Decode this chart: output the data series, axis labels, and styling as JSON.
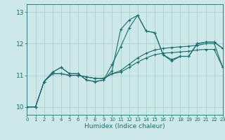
{
  "xlabel": "Humidex (Indice chaleur)",
  "background_color": "#cce8e8",
  "grid_color": "#aacccc",
  "line_color": "#1a6e6e",
  "xlim": [
    0,
    23
  ],
  "ylim": [
    9.75,
    13.25
  ],
  "yticks": [
    10,
    11,
    12,
    13
  ],
  "xticks": [
    0,
    1,
    2,
    3,
    4,
    5,
    6,
    7,
    8,
    9,
    10,
    11,
    12,
    13,
    14,
    15,
    16,
    17,
    18,
    19,
    20,
    21,
    22,
    23
  ],
  "series": [
    {
      "x": [
        0,
        1,
        2,
        3,
        4,
        5,
        6,
        7,
        8,
        9,
        10,
        11,
        12,
        13,
        14,
        15,
        16,
        17,
        18,
        19,
        20,
        21,
        22,
        23
      ],
      "y": [
        10.0,
        10.0,
        10.8,
        11.1,
        11.25,
        11.05,
        11.05,
        10.85,
        10.8,
        10.85,
        11.15,
        12.45,
        12.75,
        12.9,
        12.4,
        12.35,
        11.65,
        11.5,
        11.6,
        11.6,
        12.0,
        12.05,
        12.05,
        11.85
      ]
    },
    {
      "x": [
        0,
        1,
        2,
        3,
        4,
        5,
        6,
        7,
        8,
        9,
        10,
        11,
        12,
        13,
        14,
        15,
        16,
        17,
        18,
        19,
        20,
        21,
        22,
        23
      ],
      "y": [
        10.0,
        10.0,
        10.8,
        11.05,
        11.05,
        11.0,
        11.0,
        10.95,
        10.9,
        10.9,
        11.05,
        11.15,
        11.35,
        11.55,
        11.7,
        11.8,
        11.85,
        11.88,
        11.9,
        11.92,
        11.95,
        12.0,
        12.0,
        11.25
      ]
    },
    {
      "x": [
        0,
        1,
        2,
        3,
        4,
        5,
        6,
        7,
        8,
        9,
        10,
        11,
        12,
        13,
        14,
        15,
        16,
        17,
        18,
        19,
        20,
        21,
        22,
        23
      ],
      "y": [
        10.0,
        10.0,
        10.8,
        11.05,
        11.05,
        11.0,
        11.0,
        10.95,
        10.9,
        10.9,
        11.05,
        11.1,
        11.25,
        11.42,
        11.55,
        11.65,
        11.7,
        11.72,
        11.74,
        11.76,
        11.8,
        11.82,
        11.82,
        11.25
      ]
    },
    {
      "x": [
        2,
        3,
        4,
        5,
        6,
        7,
        8,
        9,
        10,
        11,
        12,
        13,
        14,
        15,
        16,
        17,
        18,
        19,
        20,
        21,
        22,
        23
      ],
      "y": [
        10.8,
        11.1,
        11.25,
        11.05,
        11.05,
        10.85,
        10.8,
        10.85,
        11.35,
        11.9,
        12.5,
        12.9,
        12.4,
        12.35,
        11.65,
        11.45,
        11.6,
        11.6,
        12.0,
        12.05,
        12.05,
        11.85
      ]
    }
  ]
}
